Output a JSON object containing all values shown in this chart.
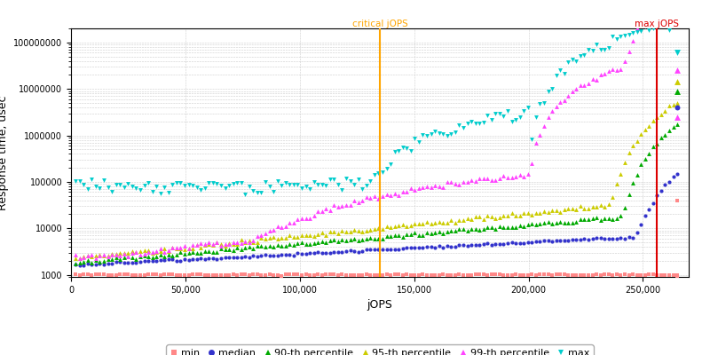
{
  "xlabel": "jOPS",
  "ylabel": "Response time, usec",
  "xlim": [
    0,
    270000
  ],
  "ylim_log": [
    900,
    200000000
  ],
  "critical_jops": 135000,
  "max_jops": 256000,
  "critical_label": "critical jOPS",
  "max_label": "max jOPS",
  "critical_color": "#FFA500",
  "max_color": "#DD0000",
  "background_color": "#FFFFFF",
  "grid_color": "#CCCCCC",
  "min_color": "#FF8888",
  "min_marker": "s",
  "min_ms": 2.5,
  "min_label": "min",
  "med_color": "#3333CC",
  "med_marker": "o",
  "med_ms": 3.0,
  "med_label": "median",
  "p90_color": "#00AA00",
  "p90_marker": "^",
  "p90_ms": 3.5,
  "p90_label": "90-th percentile",
  "p95_color": "#CCCC00",
  "p95_marker": "^",
  "p95_ms": 3.5,
  "p95_label": "95-th percentile",
  "p99_color": "#FF44FF",
  "p99_marker": "^",
  "p99_ms": 3.5,
  "p99_label": "99-th percentile",
  "max_s_color": "#00CCCC",
  "max_s_marker": "v",
  "max_s_ms": 3.5,
  "max_s_label": "max",
  "tick_fontsize": 7,
  "label_fontsize": 9,
  "legend_fontsize": 8
}
